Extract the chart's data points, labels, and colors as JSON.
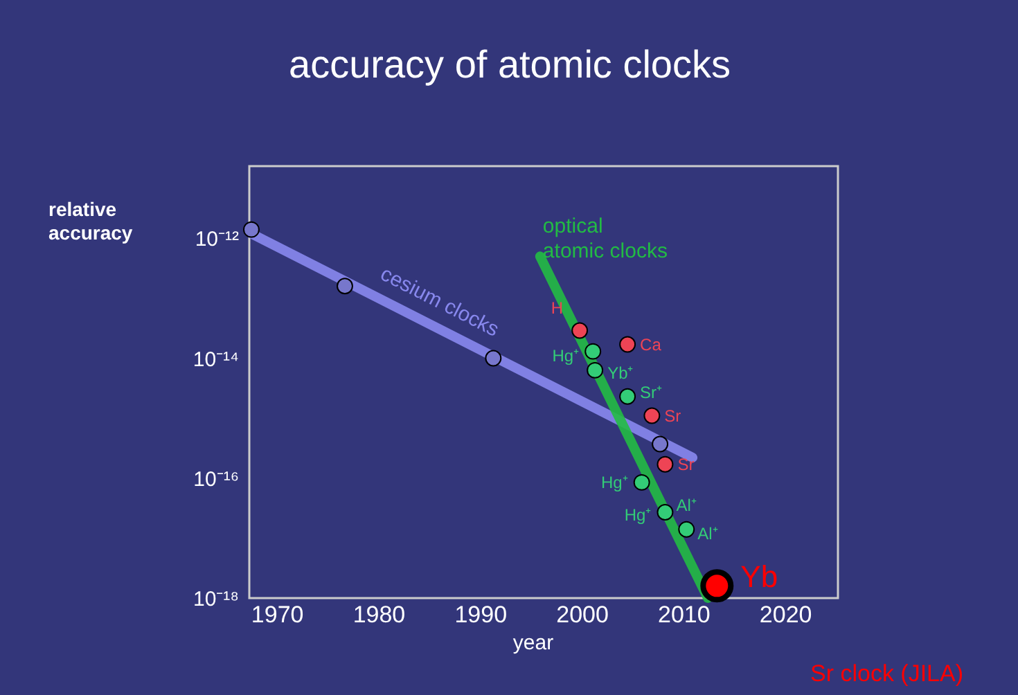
{
  "chart_data": {
    "type": "scatter",
    "title": "accuracy of atomic clocks",
    "xlabel": "year",
    "ylabel": "relative\naccuracy",
    "log": "y",
    "grid": false,
    "marker": "circle",
    "xlim": [
      1967.3,
      2025.2
    ],
    "xticks": [
      1970,
      1980,
      1990,
      2000,
      2010,
      2020
    ],
    "ylim": [
      1e-18,
      1.6e-11
    ],
    "yticks": [
      {
        "value": 1e-12,
        "label": "10⁻¹²"
      },
      {
        "value": 1e-14,
        "label": "10⁻¹⁴"
      },
      {
        "value": 1e-16,
        "label": "10⁻¹⁶"
      },
      {
        "value": 1e-18,
        "label": "10⁻¹⁸"
      }
    ],
    "series": [
      {
        "name": "cesium clocks",
        "type": "line",
        "marker": "none",
        "line_style": "solid",
        "color": "#8888ee",
        "x": [
          1967.5,
          2010.9
        ],
        "values": [
          1.2e-12,
          2.2e-16
        ]
      },
      {
        "name": "optical\natomic clocks",
        "type": "line",
        "marker": "none",
        "line_style": "solid",
        "color": "#22bb44",
        "x": [
          1995.9,
          2012.4
        ],
        "values": [
          5e-13,
          1e-18
        ]
      },
      {
        "type": "scatter",
        "color": "#7777cc",
        "x": [
          1967.5,
          1976.7,
          1991.3,
          2007.7
        ],
        "values": [
          1.4e-12,
          1.6e-13,
          1e-14,
          3.7e-16
        ]
      },
      {
        "type": "scatter",
        "color": "#ee4455",
        "x": [
          1999.8,
          2004.5,
          2006.9,
          2008.2
        ],
        "values": [
          2.9e-14,
          1.7e-14,
          1.1e-15,
          1.7e-16
        ]
      },
      {
        "type": "scatter",
        "color": "#33cc77",
        "x": [
          2001.1,
          2001.3,
          2004.5,
          2005.9,
          2008.2,
          2010.3
        ],
        "values": [
          1.3e-14,
          6.3e-15,
          2.3e-15,
          8.5e-17,
          2.7e-17,
          1.4e-17
        ]
      },
      {
        "type": "scatter",
        "color": "#ff0000",
        "x": [
          2013.3
        ],
        "values": [
          1.6e-18
        ]
      }
    ],
    "annotations": [
      {
        "text": "H",
        "x": 1999.8,
        "y": 2.9e-14
      },
      {
        "text": "Ca",
        "x": 2004.5,
        "y": 1.7e-14
      },
      {
        "text": "Hg⁺",
        "x": 2001.1,
        "y": 1.3e-14
      },
      {
        "text": "Yb⁺",
        "x": 2001.3,
        "y": 6.3e-15
      },
      {
        "text": "Sr⁺",
        "x": 2004.5,
        "y": 2.3e-15
      },
      {
        "text": "Sr",
        "x": 2006.9,
        "y": 1.1e-15
      },
      {
        "text": "Sr",
        "x": 2008.2,
        "y": 1.7e-16
      },
      {
        "text": "Hg⁺",
        "x": 2005.9,
        "y": 8.5e-17
      },
      {
        "text": "Hg⁺",
        "x": 2008.2,
        "y": 2.7e-17
      },
      {
        "text": "Al⁺",
        "x": 2008.2,
        "y": 2.7e-17
      },
      {
        "text": "Al⁺",
        "x": 2010.3,
        "y": 1.4e-17
      },
      {
        "text": "Yb",
        "x": 2013.3,
        "y": 1.6e-18
      },
      "Sr clock (JILA)"
    ]
  }
}
